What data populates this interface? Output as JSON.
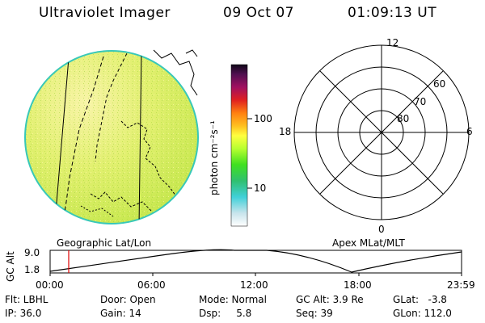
{
  "header": {
    "instrument": "Ultraviolet Imager",
    "date": "09 Oct 07",
    "time": "01:09:13 UT"
  },
  "colorbar": {
    "unit_label": "photon cm⁻²s⁻¹",
    "ticks": [
      "100",
      "10"
    ]
  },
  "panels": {
    "left_label": "Geographic Lat/Lon",
    "right_label": "Apex MLat/MLT"
  },
  "polar_grid": {
    "mlt_labels": [
      "12",
      "18",
      "6",
      "0"
    ],
    "lat_labels": [
      "60",
      "70",
      "80"
    ]
  },
  "altitude_plot": {
    "ylabel": "GC Alt",
    "yticks": [
      "9.0",
      "1.8"
    ],
    "xticks": [
      "00:00",
      "06:00",
      "12:00",
      "18:00",
      "23:59"
    ],
    "current_time_marker": "01:09"
  },
  "status": {
    "row1": {
      "filt": "Flt: LBHL",
      "door": "Door: Open",
      "mode": "Mode: Normal",
      "gc_alt": "GC Alt: 3.9 Re",
      "glat": "GLat:   -3.8"
    },
    "row2": {
      "ip": "IP: 36.0",
      "gain": "Gain: 14",
      "dsp": "Dsp:     5.8",
      "seq": "Seq: 39",
      "glon": "GLon: 112.0"
    }
  },
  "colors": {
    "image_base": "#d8ee48",
    "image_bright": "#f4f2a0",
    "image_edge": "#38c8b8"
  }
}
